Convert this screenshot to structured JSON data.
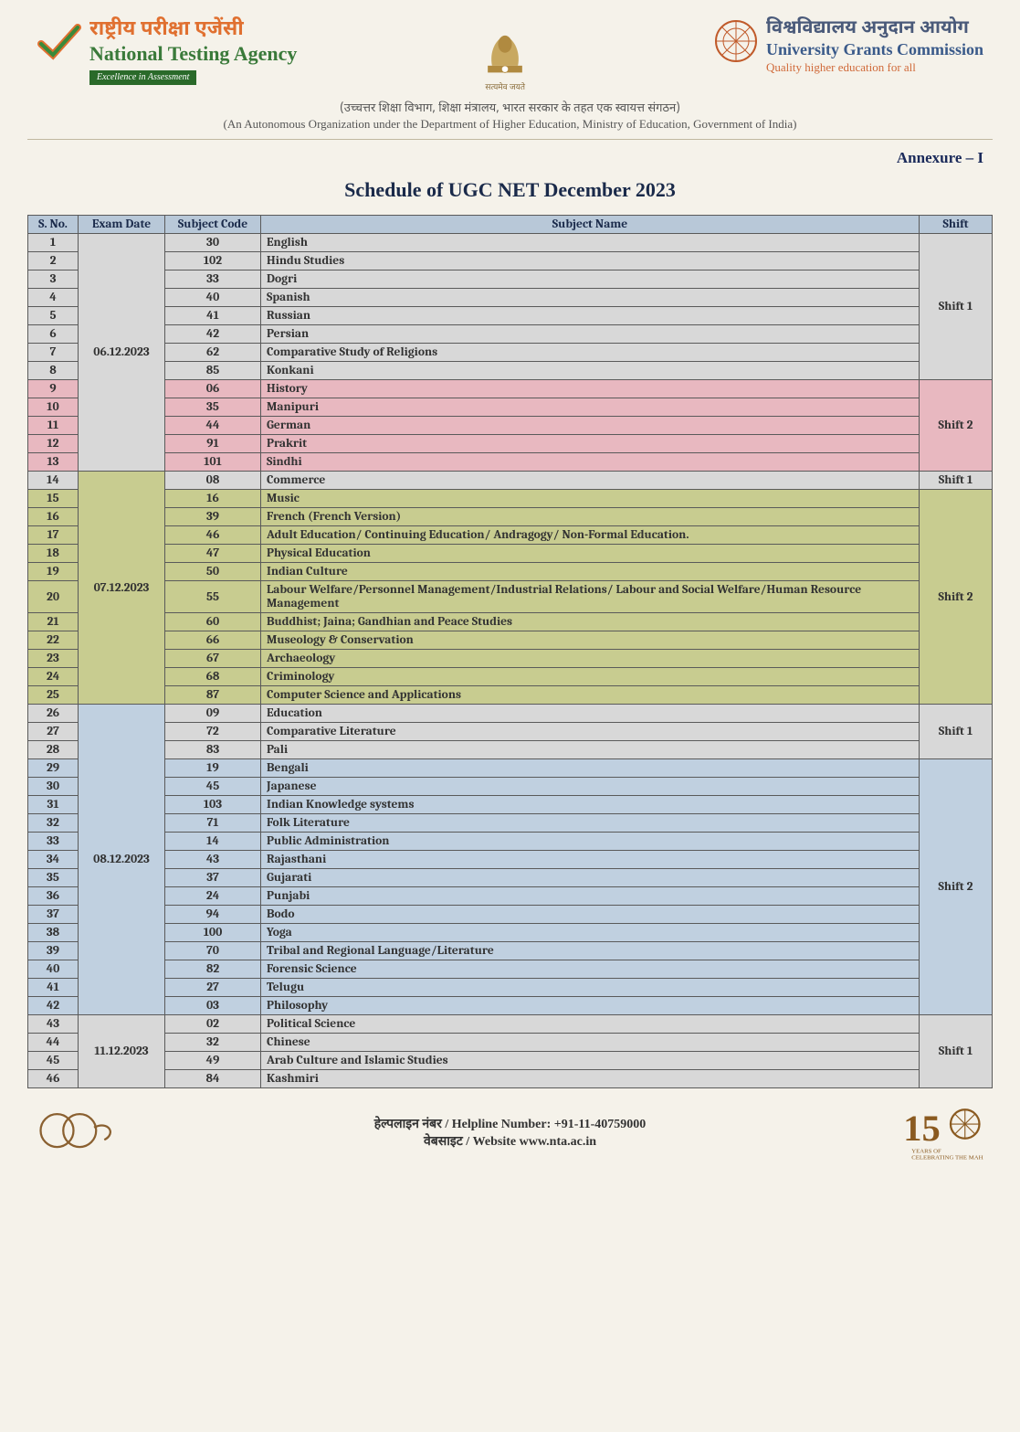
{
  "header": {
    "nta_hindi": "राष्ट्रीय परीक्षा एजेंसी",
    "nta_eng": "National Testing Agency",
    "nta_tag": "Excellence in Assessment",
    "emblem_caption": "सत्यमेव जयते",
    "ugc_hindi": "विश्वविद्यालय अनुदान आयोग",
    "ugc_eng": "University Grants Commission",
    "ugc_tag": "Quality higher education for all",
    "sub_hindi": "(उच्चत्तर शिक्षा विभाग, शिक्षा मंत्रालय, भारत सरकार के तहत एक स्वायत्त संगठन)",
    "sub_eng": "(An Autonomous Organization under the Department of Higher Education, Ministry of Education, Government of India)"
  },
  "annexure": "Annexure – I",
  "title": "Schedule of UGC NET December 2023",
  "columns": [
    "S. No.",
    "Exam Date",
    "Subject Code",
    "Subject Name",
    "Shift"
  ],
  "colors": {
    "header_bg": "#b8c8d8",
    "grey": "#d8d8d8",
    "pink": "#e8b8c0",
    "olive": "#c8cc90",
    "blue": "#c0d0e0"
  },
  "blocks": [
    {
      "date": "06.12.2023",
      "date_bg": "grey",
      "shifts": [
        {
          "label": "Shift 1",
          "shift_bg": "grey",
          "rows": [
            {
              "sno": 1,
              "code": 30,
              "name": "English",
              "bg": "grey"
            },
            {
              "sno": 2,
              "code": 102,
              "name": "Hindu Studies",
              "bg": "grey"
            },
            {
              "sno": 3,
              "code": 33,
              "name": "Dogri",
              "bg": "grey"
            },
            {
              "sno": 4,
              "code": 40,
              "name": "Spanish",
              "bg": "grey"
            },
            {
              "sno": 5,
              "code": 41,
              "name": "Russian",
              "bg": "grey"
            },
            {
              "sno": 6,
              "code": 42,
              "name": "Persian",
              "bg": "grey"
            },
            {
              "sno": 7,
              "code": 62,
              "name": "Comparative Study of Religions",
              "bg": "grey"
            },
            {
              "sno": 8,
              "code": 85,
              "name": "Konkani",
              "bg": "grey"
            }
          ]
        },
        {
          "label": "Shift 2",
          "shift_bg": "pink",
          "rows": [
            {
              "sno": 9,
              "code": "06",
              "name": "History",
              "bg": "pink"
            },
            {
              "sno": 10,
              "code": 35,
              "name": "Manipuri",
              "bg": "pink"
            },
            {
              "sno": 11,
              "code": 44,
              "name": "German",
              "bg": "pink"
            },
            {
              "sno": 12,
              "code": 91,
              "name": "Prakrit",
              "bg": "pink"
            },
            {
              "sno": 13,
              "code": 101,
              "name": "Sindhi",
              "bg": "pink"
            }
          ]
        }
      ]
    },
    {
      "date": "07.12.2023",
      "date_bg": "olive",
      "shifts": [
        {
          "label": "Shift 1",
          "shift_bg": "grey",
          "rows": [
            {
              "sno": 14,
              "code": "08",
              "name": "Commerce",
              "bg": "grey"
            }
          ]
        },
        {
          "label": "Shift 2",
          "shift_bg": "olive",
          "rows": [
            {
              "sno": 15,
              "code": 16,
              "name": "Music",
              "bg": "olive"
            },
            {
              "sno": 16,
              "code": 39,
              "name": "French (French Version)",
              "bg": "olive"
            },
            {
              "sno": 17,
              "code": 46,
              "name": "Adult Education/ Continuing Education/ Andragogy/ Non-Formal Education.",
              "bg": "olive"
            },
            {
              "sno": 18,
              "code": 47,
              "name": "Physical Education",
              "bg": "olive"
            },
            {
              "sno": 19,
              "code": 50,
              "name": "Indian Culture",
              "bg": "olive"
            },
            {
              "sno": 20,
              "code": 55,
              "name": "Labour Welfare/Personnel Management/Industrial Relations/ Labour and Social Welfare/Human Resource Management",
              "bg": "olive"
            },
            {
              "sno": 21,
              "code": 60,
              "name": "Buddhist; Jaina; Gandhian and Peace Studies",
              "bg": "olive"
            },
            {
              "sno": 22,
              "code": 66,
              "name": "Museology & Conservation",
              "bg": "olive"
            },
            {
              "sno": 23,
              "code": 67,
              "name": "Archaeology",
              "bg": "olive"
            },
            {
              "sno": 24,
              "code": 68,
              "name": "Criminology",
              "bg": "olive"
            },
            {
              "sno": 25,
              "code": 87,
              "name": "Computer Science and Applications",
              "bg": "olive"
            }
          ]
        }
      ]
    },
    {
      "date": "08.12.2023",
      "date_bg": "blue",
      "shifts": [
        {
          "label": "Shift 1",
          "shift_bg": "grey",
          "rows": [
            {
              "sno": 26,
              "code": "09",
              "name": "Education",
              "bg": "grey"
            },
            {
              "sno": 27,
              "code": 72,
              "name": "Comparative Literature",
              "bg": "grey"
            },
            {
              "sno": 28,
              "code": 83,
              "name": "Pali",
              "bg": "grey"
            }
          ]
        },
        {
          "label": "Shift 2",
          "shift_bg": "blue",
          "rows": [
            {
              "sno": 29,
              "code": 19,
              "name": "Bengali",
              "bg": "blue"
            },
            {
              "sno": 30,
              "code": 45,
              "name": "Japanese",
              "bg": "blue"
            },
            {
              "sno": 31,
              "code": 103,
              "name": "Indian Knowledge systems",
              "bg": "blue"
            },
            {
              "sno": 32,
              "code": 71,
              "name": "Folk Literature",
              "bg": "blue"
            },
            {
              "sno": 33,
              "code": 14,
              "name": "Public Administration",
              "bg": "blue"
            },
            {
              "sno": 34,
              "code": 43,
              "name": "Rajasthani",
              "bg": "blue"
            },
            {
              "sno": 35,
              "code": 37,
              "name": "Gujarati",
              "bg": "blue"
            },
            {
              "sno": 36,
              "code": 24,
              "name": "Punjabi",
              "bg": "blue"
            },
            {
              "sno": 37,
              "code": 94,
              "name": "Bodo",
              "bg": "blue"
            },
            {
              "sno": 38,
              "code": 100,
              "name": "Yoga",
              "bg": "blue"
            },
            {
              "sno": 39,
              "code": 70,
              "name": "Tribal and Regional Language/Literature",
              "bg": "blue"
            },
            {
              "sno": 40,
              "code": 82,
              "name": "Forensic Science",
              "bg": "blue"
            },
            {
              "sno": 41,
              "code": 27,
              "name": "Telugu",
              "bg": "blue"
            },
            {
              "sno": 42,
              "code": "03",
              "name": "Philosophy",
              "bg": "blue"
            }
          ]
        }
      ]
    },
    {
      "date": "11.12.2023",
      "date_bg": "grey",
      "shifts": [
        {
          "label": "Shift 1",
          "shift_bg": "grey",
          "rows": [
            {
              "sno": 43,
              "code": "02",
              "name": "Political Science",
              "bg": "grey"
            },
            {
              "sno": 44,
              "code": 32,
              "name": "Chinese",
              "bg": "grey"
            },
            {
              "sno": 45,
              "code": 49,
              "name": "Arab Culture and Islamic Studies",
              "bg": "grey"
            },
            {
              "sno": 46,
              "code": 84,
              "name": "Kashmiri",
              "bg": "grey"
            }
          ]
        }
      ]
    }
  ],
  "footer": {
    "helpline": "हेल्पलाइन नंबर / Helpline Number: +91-11-40759000",
    "website": "वेबसाइट / Website www.nta.ac.in"
  }
}
